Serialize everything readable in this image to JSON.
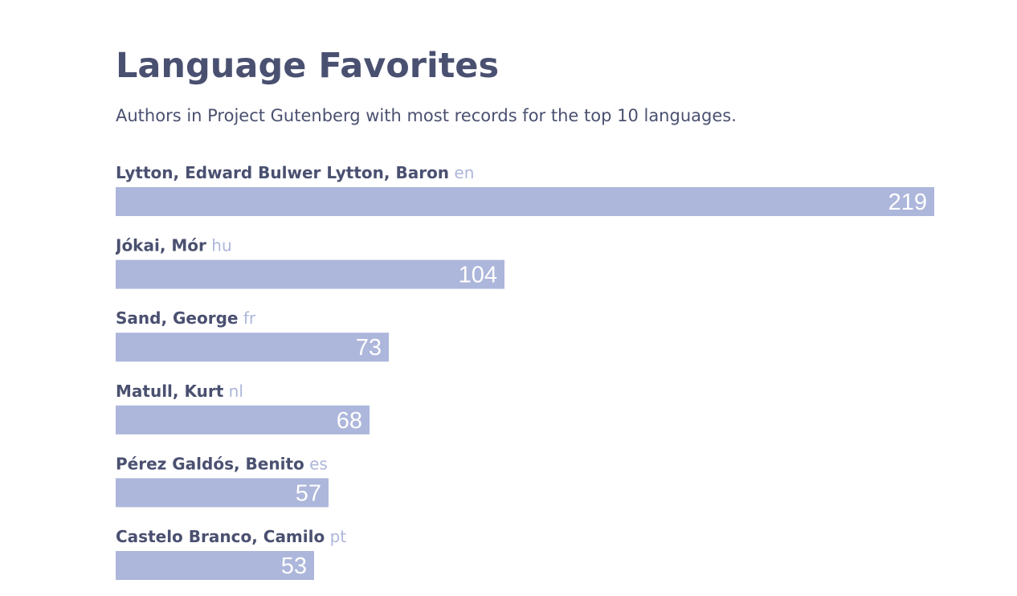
{
  "title": "Language Favorites",
  "subtitle": "Authors in Project Gutenberg with most records for the top 10 languages.",
  "colors": {
    "text": "#4a5070",
    "bar": "#adb6db",
    "language": "#adb6db",
    "value": "#ffffff",
    "background": "#ffffff"
  },
  "chart_data": {
    "type": "bar",
    "orientation": "horizontal",
    "title": "Language Favorites",
    "subtitle": "Authors in Project Gutenberg with most records for the top 10 languages.",
    "categories": [
      "Lytton, Edward Bulwer Lytton, Baron",
      "Jókai, Mór",
      "Sand, George",
      "Matull, Kurt",
      "Pérez Galdós, Benito",
      "Castelo Branco, Camilo"
    ],
    "languages": [
      "en",
      "hu",
      "fr",
      "nl",
      "es",
      "pt"
    ],
    "values": [
      219,
      104,
      73,
      68,
      57,
      53
    ],
    "value_labels": [
      "219",
      "104",
      "73",
      "68",
      "57",
      "53"
    ],
    "xlim": [
      0,
      219
    ],
    "grid": false,
    "legend": "none"
  }
}
